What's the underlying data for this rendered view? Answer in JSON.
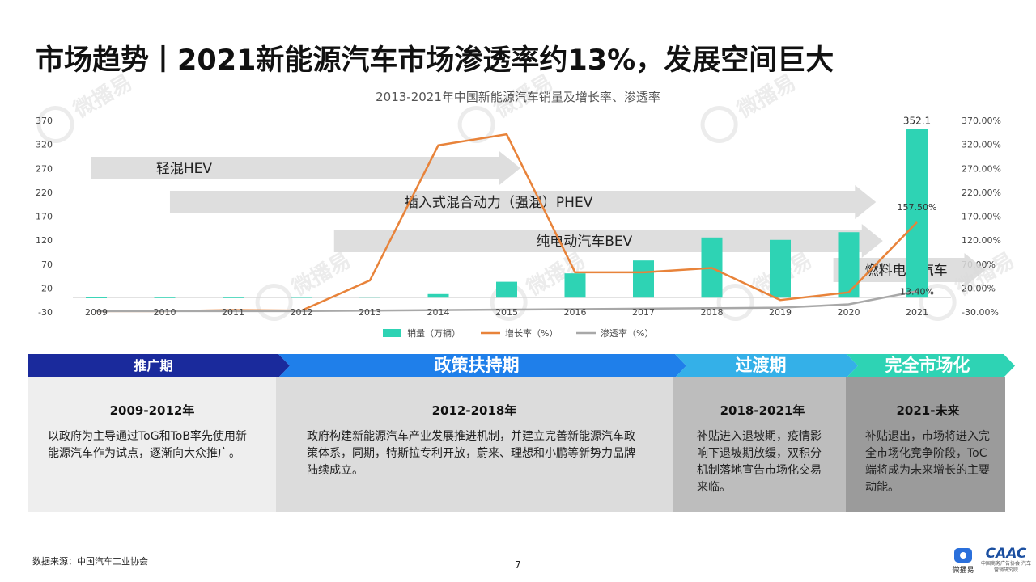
{
  "title": "市场趋势丨2021新能源汽车市场渗透率约13%，发展空间巨大",
  "watermark_text": "微播易",
  "chart_data": {
    "type": "bar+line",
    "title": "2013-2021年中国新能源汽车销量及增长率、渗透率",
    "categories": [
      "2009",
      "2010",
      "2011",
      "2012",
      "2013",
      "2014",
      "2015",
      "2016",
      "2017",
      "2018",
      "2019",
      "2020",
      "2021"
    ],
    "left_ticks": [
      "370",
      "320",
      "270",
      "220",
      "170",
      "120",
      "70",
      "20",
      "-30"
    ],
    "right_ticks": [
      "370.00%",
      "320.00%",
      "270.00%",
      "220.00%",
      "170.00%",
      "120.00%",
      "70.00%",
      "20.00%",
      "-30.00%"
    ],
    "ylim": [
      -30,
      370
    ],
    "series": [
      {
        "name": "销量（万辆）",
        "type": "bar",
        "color": "#2ed3b4",
        "values": [
          0.5,
          0.8,
          0.8,
          1.3,
          1.8,
          7.5,
          33.1,
          50.7,
          77.7,
          125.6,
          120.6,
          136.7,
          352.1
        ]
      },
      {
        "name": "增长率（%）",
        "type": "line",
        "color": "#e8833a",
        "values": [
          -28,
          -28,
          -26,
          -27,
          36,
          318,
          341,
          53,
          53,
          62,
          -5,
          11,
          157.5
        ]
      },
      {
        "name": "渗透率（%）",
        "type": "line",
        "color": "#a8a8a8",
        "values": [
          -28,
          -28,
          -28,
          -28,
          -27,
          -26,
          -25,
          -24,
          -23,
          -22,
          -21,
          -14,
          13.4
        ]
      }
    ],
    "data_labels": {
      "bar_2021": "352.1",
      "growth_2021": "157.50%",
      "penetration_2021": "13.40%"
    },
    "arrows": [
      {
        "label": "轻混HEV",
        "start_cat": 0,
        "end_cat": 6.2
      },
      {
        "label": "插入式混合动力（强混）PHEV",
        "start_cat": 1.1,
        "end_cat": 11.4
      },
      {
        "label": "纯电动汽车BEV",
        "start_cat": 3.5,
        "end_cat": 11.5
      },
      {
        "label": "燃料电池汽车",
        "start_cat": 10.8,
        "end_cat": 13.0
      }
    ],
    "legend_position": "bottom"
  },
  "phases": [
    {
      "name": "推广期",
      "years": "2009-2012年",
      "text": "以政府为主导通过ToG和ToB率先使用新能源汽车作为试点，逐渐向大众推广。",
      "color": "#1a2a9c"
    },
    {
      "name": "政策扶持期",
      "years": "2012-2018年",
      "text": "政府构建新能源汽车产业发展推进机制，并建立完善新能源汽车政策体系，同期，特斯拉专利开放，蔚来、理想和小鹏等新势力品牌陆续成立。",
      "color": "#1f7fea"
    },
    {
      "name": "过渡期",
      "years": "2018-2021年",
      "text": "补贴进入退坡期，疫情影响下退坡期放缓，双积分机制落地宣告市场化交易来临。",
      "color": "#34b0e8"
    },
    {
      "name": "完全市场化",
      "years": "2021-未来",
      "text": "补贴退出，市场将进入完全市场化竞争阶段，ToC端将成为未来增长的主要动能。",
      "color": "#2ed3b4"
    }
  ],
  "source": "数据来源：中国汽车工业协会",
  "page_number": "7",
  "logos": {
    "left_caption": "微播易",
    "right_main": "CAAC",
    "right_sub": "中国商务广告协会 汽车营销研究院"
  }
}
